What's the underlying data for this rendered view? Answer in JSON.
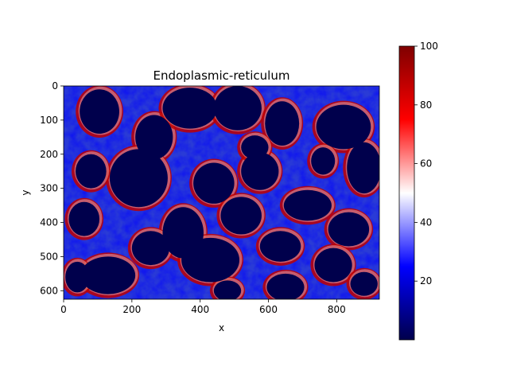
{
  "chart_data": {
    "type": "heatmap",
    "title": "Endoplasmic-reticulum",
    "xlabel": "x",
    "ylabel": "y",
    "xlim": [
      0,
      925
    ],
    "ylim": [
      625,
      0
    ],
    "x_ticks": [
      0,
      200,
      400,
      600,
      800
    ],
    "y_ticks": [
      0,
      100,
      200,
      300,
      400,
      500,
      600
    ],
    "colorbar": {
      "colormap": "seismic",
      "range": [
        0,
        100
      ],
      "ticks": [
        20,
        40,
        60,
        80,
        100
      ],
      "colors": [
        "#00004c",
        "#0000ff",
        "#ffffff",
        "#ff0000",
        "#7f0000"
      ]
    },
    "cells": [
      {
        "cx": 105,
        "cy": 75,
        "rx": 58,
        "ry": 65
      },
      {
        "cx": 265,
        "cy": 150,
        "rx": 55,
        "ry": 65
      },
      {
        "cx": 370,
        "cy": 65,
        "rx": 80,
        "ry": 60
      },
      {
        "cx": 510,
        "cy": 65,
        "rx": 70,
        "ry": 65
      },
      {
        "cx": 640,
        "cy": 110,
        "rx": 50,
        "ry": 65
      },
      {
        "cx": 820,
        "cy": 120,
        "rx": 80,
        "ry": 65
      },
      {
        "cx": 220,
        "cy": 270,
        "rx": 85,
        "ry": 85
      },
      {
        "cx": 80,
        "cy": 250,
        "rx": 45,
        "ry": 50
      },
      {
        "cx": 440,
        "cy": 285,
        "rx": 60,
        "ry": 60
      },
      {
        "cx": 575,
        "cy": 250,
        "rx": 55,
        "ry": 55
      },
      {
        "cx": 760,
        "cy": 220,
        "rx": 35,
        "ry": 40
      },
      {
        "cx": 880,
        "cy": 240,
        "rx": 50,
        "ry": 75
      },
      {
        "cx": 715,
        "cy": 350,
        "rx": 70,
        "ry": 45
      },
      {
        "cx": 350,
        "cy": 430,
        "rx": 60,
        "ry": 75
      },
      {
        "cx": 60,
        "cy": 390,
        "rx": 45,
        "ry": 50
      },
      {
        "cx": 520,
        "cy": 380,
        "rx": 60,
        "ry": 55
      },
      {
        "cx": 835,
        "cy": 420,
        "rx": 60,
        "ry": 50
      },
      {
        "cx": 255,
        "cy": 475,
        "rx": 55,
        "ry": 50
      },
      {
        "cx": 430,
        "cy": 510,
        "rx": 85,
        "ry": 65
      },
      {
        "cx": 790,
        "cy": 525,
        "rx": 55,
        "ry": 50
      },
      {
        "cx": 130,
        "cy": 555,
        "rx": 80,
        "ry": 55
      },
      {
        "cx": 635,
        "cy": 470,
        "rx": 60,
        "ry": 45
      },
      {
        "cx": 650,
        "cy": 590,
        "rx": 55,
        "ry": 40
      },
      {
        "cx": 40,
        "cy": 560,
        "rx": 35,
        "ry": 45
      },
      {
        "cx": 480,
        "cy": 600,
        "rx": 40,
        "ry": 30
      },
      {
        "cx": 880,
        "cy": 580,
        "rx": 40,
        "ry": 35
      },
      {
        "cx": 560,
        "cy": 180,
        "rx": 40,
        "ry": 35
      }
    ]
  }
}
